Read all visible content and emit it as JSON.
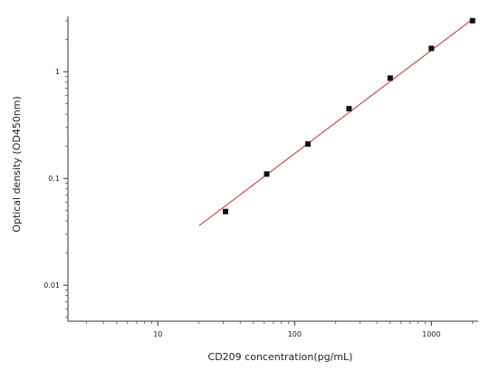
{
  "chart_data": {
    "type": "scatter",
    "title": "",
    "xlabel": "CD209 concentration(pg/mL)",
    "ylabel": "Optical density (OD450nm)",
    "x_scale": "log",
    "y_scale": "log",
    "xlim": [
      2.2,
      2200
    ],
    "ylim": [
      0.0046,
      3.3
    ],
    "x_ticks": [
      {
        "value": 10,
        "label": "10"
      },
      {
        "value": 100,
        "label": "100"
      },
      {
        "value": 1000,
        "label": "1000"
      }
    ],
    "y_ticks": [
      {
        "value": 0.01,
        "label": "0.01"
      },
      {
        "value": 0.1,
        "label": "0.1"
      },
      {
        "value": 1,
        "label": "1"
      }
    ],
    "grid": false,
    "legend": "none",
    "series": [
      {
        "kind": "points",
        "marker": "square",
        "color": "#111111",
        "x": [
          31.25,
          62.5,
          125,
          250,
          500,
          1000,
          2000
        ],
        "y": [
          0.049,
          0.11,
          0.21,
          0.45,
          0.87,
          1.65,
          3.0
        ]
      },
      {
        "kind": "fit-line",
        "color": "#c0504d",
        "x": [
          20,
          2000
        ],
        "y": [
          0.036,
          3.1
        ]
      }
    ]
  }
}
